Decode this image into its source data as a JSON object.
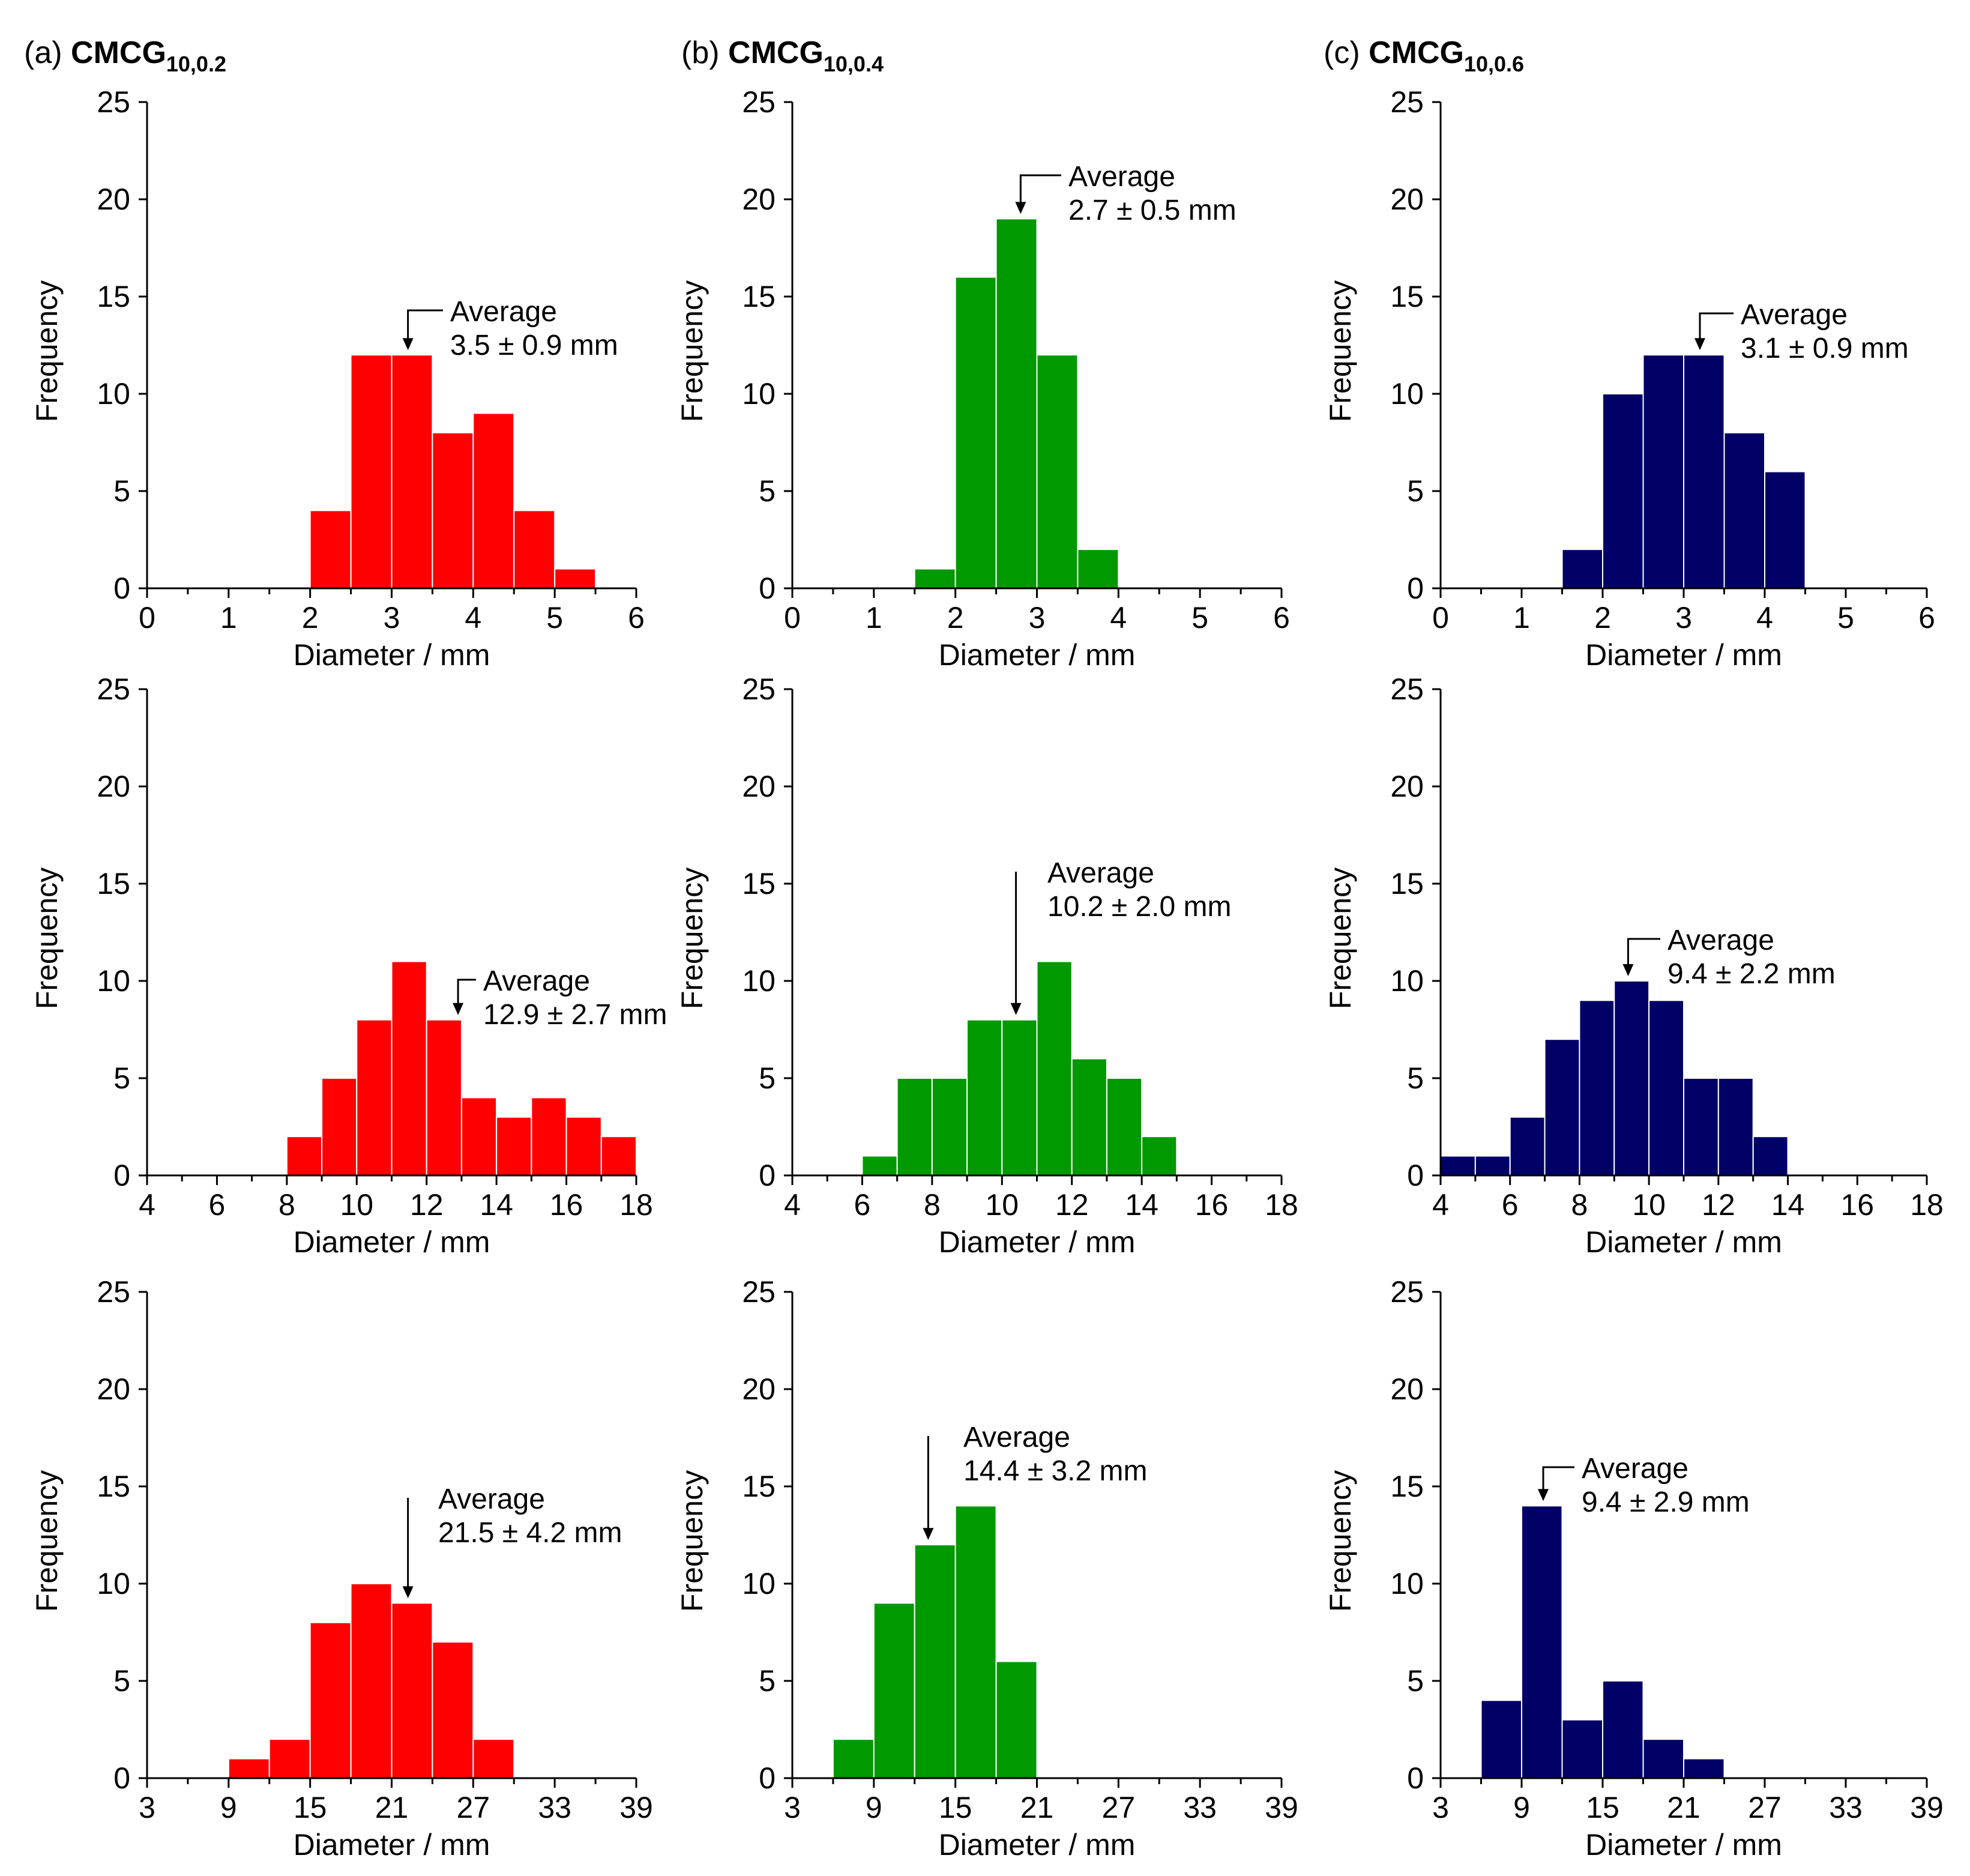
{
  "figure": {
    "panel_titles": [
      {
        "prefix": "(a)",
        "name": "CMCG",
        "subscript": "10,0.2"
      },
      {
        "prefix": "(b)",
        "name": "CMCG",
        "subscript": "10,0.4"
      },
      {
        "prefix": "(c)",
        "name": "CMCG",
        "subscript": "10,0.6"
      }
    ]
  },
  "chart_data": [
    {
      "type": "bar",
      "panel": "a",
      "row": 1,
      "color": "#ff0000",
      "xlabel": "Diameter / mm",
      "ylabel": "Frequency",
      "xlim": [
        0,
        6
      ],
      "xticks": [
        0,
        1,
        2,
        3,
        4,
        5,
        6
      ],
      "ylim": [
        0,
        25
      ],
      "yticks": [
        0,
        5,
        10,
        15,
        20,
        25
      ],
      "bins": [
        [
          2,
          2.5
        ],
        [
          2.5,
          3
        ],
        [
          3,
          3.5
        ],
        [
          3.5,
          4
        ],
        [
          4,
          4.5
        ],
        [
          4.5,
          5
        ],
        [
          5,
          5.5
        ]
      ],
      "values": [
        4,
        12,
        12,
        8,
        9,
        4,
        1
      ],
      "annotation": {
        "label": "Average",
        "value": "3.5 ± 0.9 mm",
        "arrow_x": 3.2
      }
    },
    {
      "type": "bar",
      "panel": "b",
      "row": 1,
      "color": "#009900",
      "xlabel": "Diameter / mm",
      "ylabel": "Frequency",
      "xlim": [
        0,
        6
      ],
      "xticks": [
        0,
        1,
        2,
        3,
        4,
        5,
        6
      ],
      "ylim": [
        0,
        25
      ],
      "yticks": [
        0,
        5,
        10,
        15,
        20,
        25
      ],
      "bins": [
        [
          1.5,
          2
        ],
        [
          2,
          2.5
        ],
        [
          2.5,
          3
        ],
        [
          3,
          3.5
        ],
        [
          3.5,
          4
        ]
      ],
      "values": [
        1,
        16,
        19,
        12,
        2
      ],
      "annotation": {
        "label": "Average",
        "value": "2.7 ± 0.5 mm",
        "arrow_x": 2.8
      }
    },
    {
      "type": "bar",
      "panel": "c",
      "row": 1,
      "color": "#000066",
      "xlabel": "Diameter / mm",
      "ylabel": "Frequency",
      "xlim": [
        0,
        6
      ],
      "xticks": [
        0,
        1,
        2,
        3,
        4,
        5,
        6
      ],
      "ylim": [
        0,
        25
      ],
      "yticks": [
        0,
        5,
        10,
        15,
        20,
        25
      ],
      "bins": [
        [
          1.5,
          2
        ],
        [
          2,
          2.5
        ],
        [
          2.5,
          3
        ],
        [
          3,
          3.5
        ],
        [
          3.5,
          4
        ],
        [
          4,
          4.5
        ]
      ],
      "values": [
        2,
        10,
        12,
        12,
        8,
        6
      ],
      "annotation": {
        "label": "Average",
        "value": "3.1 ± 0.9 mm",
        "arrow_x": 3.2
      }
    },
    {
      "type": "bar",
      "panel": "a",
      "row": 2,
      "color": "#ff0000",
      "xlabel": "Diameter / mm",
      "ylabel": "Frequency",
      "xlim": [
        4,
        18
      ],
      "xticks": [
        4,
        6,
        8,
        10,
        12,
        14,
        16,
        18
      ],
      "ylim": [
        0,
        25
      ],
      "yticks": [
        0,
        5,
        10,
        15,
        20,
        25
      ],
      "bins": [
        [
          8,
          9
        ],
        [
          9,
          10
        ],
        [
          10,
          11
        ],
        [
          11,
          12
        ],
        [
          12,
          13
        ],
        [
          13,
          14
        ],
        [
          14,
          15
        ],
        [
          15,
          16
        ],
        [
          16,
          17
        ],
        [
          17,
          18
        ]
      ],
      "values": [
        2,
        5,
        8,
        11,
        8,
        4,
        3,
        4,
        3,
        2
      ],
      "annotation": {
        "label": "Average",
        "value": "12.9 ± 2.7 mm",
        "arrow_x": 12.9
      }
    },
    {
      "type": "bar",
      "panel": "b",
      "row": 2,
      "color": "#009900",
      "xlabel": "Diameter / mm",
      "ylabel": "Frequency",
      "xlim": [
        4,
        18
      ],
      "xticks": [
        4,
        6,
        8,
        10,
        12,
        14,
        16,
        18
      ],
      "ylim": [
        0,
        25
      ],
      "yticks": [
        0,
        5,
        10,
        15,
        20,
        25
      ],
      "bins": [
        [
          6,
          7
        ],
        [
          7,
          8
        ],
        [
          8,
          9
        ],
        [
          9,
          10
        ],
        [
          10,
          11
        ],
        [
          11,
          12
        ],
        [
          12,
          13
        ],
        [
          13,
          14
        ],
        [
          14,
          15
        ]
      ],
      "values": [
        1,
        5,
        5,
        8,
        8,
        11,
        6,
        5,
        2
      ],
      "annotation": {
        "label": "Average",
        "value": "10.2 ± 2.0 mm",
        "arrow_x": 10.4
      }
    },
    {
      "type": "bar",
      "panel": "c",
      "row": 2,
      "color": "#000066",
      "xlabel": "Diameter / mm",
      "ylabel": "Frequency",
      "xlim": [
        4,
        18
      ],
      "xticks": [
        4,
        6,
        8,
        10,
        12,
        14,
        16,
        18
      ],
      "ylim": [
        0,
        25
      ],
      "yticks": [
        0,
        5,
        10,
        15,
        20,
        25
      ],
      "bins": [
        [
          4,
          5
        ],
        [
          5,
          6
        ],
        [
          6,
          7
        ],
        [
          7,
          8
        ],
        [
          8,
          9
        ],
        [
          9,
          10
        ],
        [
          10,
          11
        ],
        [
          11,
          12
        ],
        [
          12,
          13
        ],
        [
          13,
          14
        ]
      ],
      "values": [
        1,
        1,
        3,
        7,
        9,
        10,
        9,
        5,
        5,
        2
      ],
      "annotation": {
        "label": "Average",
        "value": "9.4 ± 2.2 mm",
        "arrow_x": 9.4
      }
    },
    {
      "type": "bar",
      "panel": "a",
      "row": 3,
      "color": "#ff0000",
      "xlabel": "Diameter / mm",
      "ylabel": "Frequency",
      "xlim": [
        3,
        39
      ],
      "xticks": [
        3,
        9,
        15,
        21,
        27,
        33,
        39
      ],
      "ylim": [
        0,
        25
      ],
      "yticks": [
        0,
        5,
        10,
        15,
        20,
        25
      ],
      "bins": [
        [
          9,
          12
        ],
        [
          12,
          15
        ],
        [
          15,
          18
        ],
        [
          18,
          21
        ],
        [
          21,
          24
        ],
        [
          24,
          27
        ],
        [
          27,
          30
        ]
      ],
      "values": [
        1,
        2,
        8,
        10,
        9,
        7,
        2
      ],
      "annotation": {
        "label": "Average",
        "value": "21.5 ± 4.2 mm",
        "arrow_x": 22.2
      }
    },
    {
      "type": "bar",
      "panel": "b",
      "row": 3,
      "color": "#009900",
      "xlabel": "Diameter / mm",
      "ylabel": "Frequency",
      "xlim": [
        3,
        39
      ],
      "xticks": [
        3,
        9,
        15,
        21,
        27,
        33,
        39
      ],
      "ylim": [
        0,
        25
      ],
      "yticks": [
        0,
        5,
        10,
        15,
        20,
        25
      ],
      "bins": [
        [
          6,
          9
        ],
        [
          9,
          12
        ],
        [
          12,
          15
        ],
        [
          15,
          18
        ],
        [
          18,
          21
        ]
      ],
      "values": [
        2,
        9,
        12,
        14,
        6
      ],
      "annotation": {
        "label": "Average",
        "value": "14.4 ± 3.2 mm",
        "arrow_x": 13.0
      }
    },
    {
      "type": "bar",
      "panel": "c",
      "row": 3,
      "color": "#000066",
      "xlabel": "Diameter / mm",
      "ylabel": "Frequency",
      "xlim": [
        3,
        39
      ],
      "xticks": [
        3,
        9,
        15,
        21,
        27,
        33,
        39
      ],
      "ylim": [
        0,
        25
      ],
      "yticks": [
        0,
        5,
        10,
        15,
        20,
        25
      ],
      "bins": [
        [
          6,
          9
        ],
        [
          9,
          12
        ],
        [
          12,
          15
        ],
        [
          15,
          18
        ],
        [
          18,
          21
        ],
        [
          21,
          24
        ]
      ],
      "values": [
        4,
        14,
        3,
        5,
        2,
        1
      ],
      "annotation": {
        "label": "Average",
        "value": "9.4 ± 2.9 mm",
        "arrow_x": 10.6
      }
    }
  ]
}
